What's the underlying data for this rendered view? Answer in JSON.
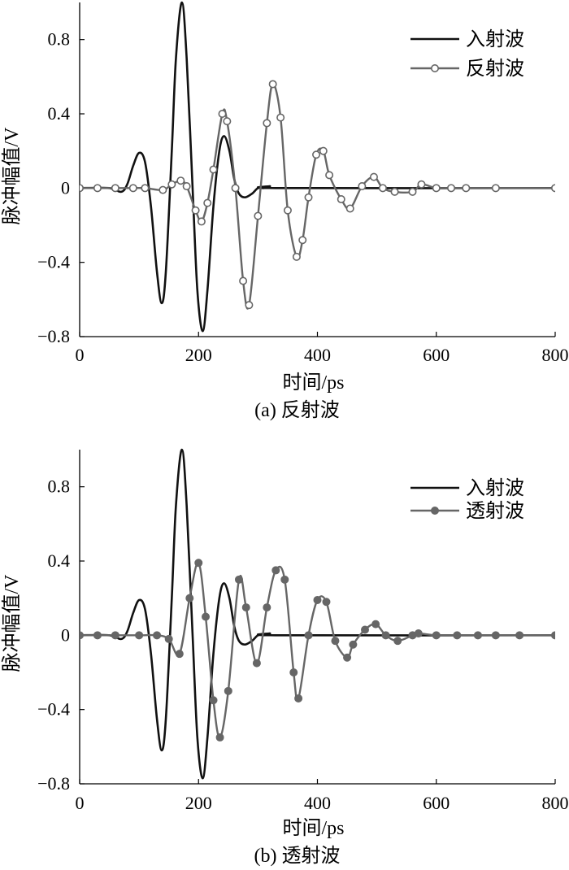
{
  "chart_data": [
    {
      "type": "line",
      "caption": "(a) 反射波",
      "xlabel": "时间/ps",
      "ylabel": "脉冲幅值/V",
      "xlim": [
        0,
        800
      ],
      "ylim": [
        -0.8,
        1.0
      ],
      "xticks": [
        0,
        200,
        400,
        600,
        800
      ],
      "yticks": [
        -0.8,
        -0.4,
        0,
        0.4,
        0.8
      ],
      "xtick_labels": [
        "0",
        "200",
        "400",
        "600",
        "800"
      ],
      "ytick_labels": [
        "−0.8",
        "−0.4",
        "0",
        "0.4",
        "0.8"
      ],
      "legend_position": "top-right",
      "series": [
        {
          "name": "入射波",
          "color": "#111111",
          "marker": "none",
          "x": [
            0,
            50,
            70,
            80,
            90,
            100,
            110,
            120,
            130,
            138,
            145,
            155,
            162,
            172,
            180,
            190,
            198,
            207,
            215,
            225,
            235,
            243,
            252,
            260,
            268,
            278,
            290,
            300,
            310,
            320,
            340,
            800
          ],
          "y": [
            0,
            0,
            -0.02,
            0.02,
            0.12,
            0.19,
            0.14,
            -0.1,
            -0.45,
            -0.62,
            -0.45,
            0.2,
            0.7,
            1.0,
            0.7,
            0.0,
            -0.55,
            -0.77,
            -0.55,
            -0.1,
            0.2,
            0.28,
            0.2,
            0.05,
            -0.03,
            -0.05,
            -0.03,
            0.0,
            0.0,
            0.01,
            0.0,
            0.0
          ]
        },
        {
          "name": "反射波",
          "color": "#666666",
          "marker": "open-circle",
          "x": [
            0,
            30,
            60,
            90,
            110,
            140,
            155,
            170,
            180,
            195,
            205,
            215,
            225,
            240,
            248,
            262,
            275,
            285,
            300,
            315,
            325,
            338,
            350,
            365,
            375,
            385,
            398,
            410,
            420,
            440,
            455,
            475,
            495,
            510,
            530,
            560,
            575,
            600,
            625,
            650,
            700,
            800
          ],
          "y": [
            0,
            0,
            0,
            0,
            0,
            -0.01,
            0.02,
            0.04,
            0.01,
            -0.12,
            -0.18,
            -0.08,
            0.1,
            0.4,
            0.36,
            0.0,
            -0.5,
            -0.63,
            -0.15,
            0.35,
            0.56,
            0.38,
            -0.12,
            -0.37,
            -0.28,
            -0.05,
            0.18,
            0.2,
            0.07,
            -0.06,
            -0.11,
            0.01,
            0.06,
            0.0,
            -0.02,
            -0.02,
            0.02,
            0.0,
            0.0,
            0.0,
            0.0,
            0.0
          ]
        }
      ]
    },
    {
      "type": "line",
      "caption": "(b) 透射波",
      "xlabel": "时间/ps",
      "ylabel": "脉冲幅值/V",
      "xlim": [
        0,
        800
      ],
      "ylim": [
        -0.8,
        1.0
      ],
      "xticks": [
        0,
        200,
        400,
        600,
        800
      ],
      "yticks": [
        -0.8,
        -0.4,
        0,
        0.4,
        0.8
      ],
      "xtick_labels": [
        "0",
        "200",
        "400",
        "600",
        "800"
      ],
      "ytick_labels": [
        "−0.8",
        "−0.4",
        "0",
        "0.4",
        "0.8"
      ],
      "legend_position": "top-right",
      "series": [
        {
          "name": "入射波",
          "color": "#111111",
          "marker": "none",
          "x": [
            0,
            50,
            70,
            80,
            90,
            100,
            110,
            120,
            130,
            138,
            145,
            155,
            162,
            172,
            180,
            190,
            198,
            207,
            215,
            225,
            235,
            243,
            252,
            260,
            268,
            278,
            290,
            300,
            310,
            320,
            340,
            800
          ],
          "y": [
            0,
            0,
            -0.02,
            0.02,
            0.12,
            0.19,
            0.14,
            -0.1,
            -0.45,
            -0.62,
            -0.45,
            0.2,
            0.7,
            1.0,
            0.7,
            0.0,
            -0.55,
            -0.77,
            -0.55,
            -0.1,
            0.2,
            0.28,
            0.2,
            0.05,
            -0.03,
            -0.05,
            -0.03,
            0.0,
            0.0,
            0.01,
            0.0,
            0.0
          ]
        },
        {
          "name": "透射波",
          "color": "#666666",
          "marker": "filled-circle",
          "x": [
            0,
            30,
            60,
            100,
            130,
            150,
            168,
            185,
            200,
            212,
            225,
            236,
            250,
            268,
            280,
            298,
            315,
            330,
            345,
            360,
            368,
            385,
            400,
            415,
            430,
            450,
            460,
            480,
            498,
            515,
            535,
            560,
            570,
            600,
            635,
            670,
            700,
            740,
            800
          ],
          "y": [
            0,
            0,
            0,
            0,
            0,
            -0.02,
            -0.1,
            0.2,
            0.39,
            0.1,
            -0.35,
            -0.55,
            -0.3,
            0.3,
            0.15,
            -0.15,
            0.15,
            0.35,
            0.3,
            -0.2,
            -0.34,
            0.0,
            0.19,
            0.18,
            -0.03,
            -0.12,
            -0.05,
            0.03,
            0.06,
            0.0,
            -0.03,
            0.0,
            0.01,
            0.0,
            0.0,
            0.0,
            0.0,
            0.0,
            0.0
          ]
        }
      ]
    }
  ]
}
